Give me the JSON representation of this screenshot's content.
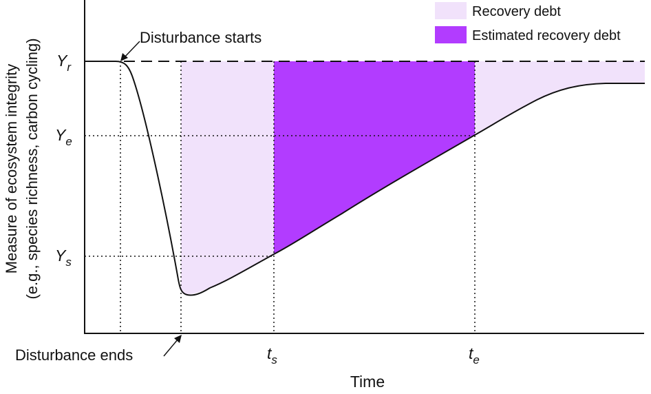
{
  "legend": {
    "items": [
      {
        "label": "Recovery debt",
        "color": "#f1e2fb"
      },
      {
        "label": "Estimated recovery debt",
        "color": "#b23cff"
      }
    ]
  },
  "axes": {
    "ylabel_line1": "Measure of ecosystem integrity",
    "ylabel_line2": "(e.g., species richness, carbon cycling)",
    "xlabel": "Time"
  },
  "y_ticks": {
    "yr": {
      "main": "Y",
      "sub": "r"
    },
    "ye": {
      "main": "Y",
      "sub": "e"
    },
    "ys": {
      "main": "Y",
      "sub": "s"
    }
  },
  "x_ticks": {
    "ts": {
      "main": "t",
      "sub": "s"
    },
    "te": {
      "main": "t",
      "sub": "e"
    }
  },
  "annotations": {
    "disturbance_starts": "Disturbance starts",
    "disturbance_ends": "Disturbance ends"
  },
  "colors": {
    "recovery_debt": "#f1e2fb",
    "estimated_recovery_debt": "#b23cff",
    "curve": "#111111"
  }
}
